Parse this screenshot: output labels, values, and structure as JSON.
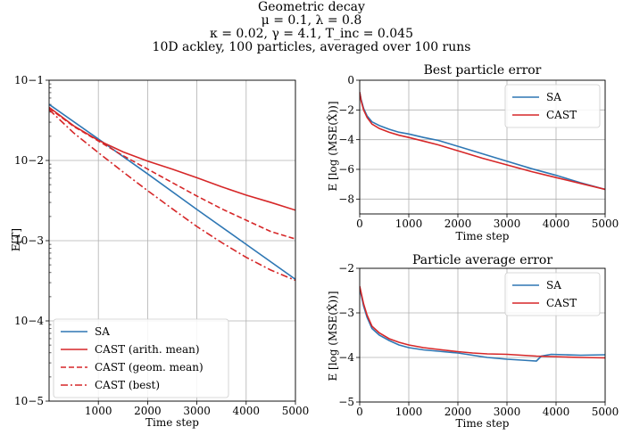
{
  "figure": {
    "title_lines": [
      "Geometric decay",
      "μ = 0.1, λ = 0.8",
      "κ = 0.02, γ = 4.1, T_inc = 0.045",
      "10D ackley, 100 particles, averaged over 100 runs"
    ]
  },
  "colors": {
    "sa": "#2e77b4",
    "cast": "#d62728",
    "grid": "#b0b0b0"
  },
  "chart_data": [
    {
      "id": "temperature",
      "type": "line",
      "title": "",
      "xlabel": "Time step",
      "ylabel": "E[T]",
      "yscale": "log",
      "xlim": [
        0,
        5000
      ],
      "ylim": [
        1e-05,
        0.1
      ],
      "xticks": [
        1000,
        2000,
        3000,
        4000,
        5000
      ],
      "yticks": [
        1e-05,
        0.0001,
        0.001,
        0.01,
        0.1
      ],
      "ytick_labels": [
        "10−5",
        "10−4",
        "10−3",
        "10−2",
        "10−1"
      ],
      "grid": true,
      "legend_position": "lower-left",
      "series": [
        {
          "name": "SA",
          "color_key": "sa",
          "style": "solid",
          "x": [
            0,
            1000,
            2000,
            3000,
            4000,
            5000
          ],
          "y": [
            0.05,
            0.0185,
            0.0068,
            0.00245,
            0.0009,
            0.00033
          ]
        },
        {
          "name": "CAST (arith. mean)",
          "color_key": "cast",
          "style": "solid",
          "x": [
            0,
            500,
            1000,
            1500,
            2000,
            2500,
            3000,
            3500,
            4000,
            4500,
            5000
          ],
          "y": [
            0.046,
            0.027,
            0.0178,
            0.0128,
            0.0098,
            0.0078,
            0.0061,
            0.0047,
            0.0037,
            0.003,
            0.0024
          ]
        },
        {
          "name": "CAST (geom. mean)",
          "color_key": "cast",
          "style": "dashed",
          "x": [
            0,
            500,
            1000,
            1500,
            2000,
            2500,
            3000,
            3500,
            4000,
            4500,
            5000
          ],
          "y": [
            0.045,
            0.0265,
            0.0175,
            0.0115,
            0.0078,
            0.0053,
            0.0036,
            0.0025,
            0.0018,
            0.0013,
            0.00105
          ]
        },
        {
          "name": "CAST (best)",
          "color_key": "cast",
          "style": "dashdot",
          "x": [
            0,
            500,
            1000,
            1500,
            2000,
            2500,
            3000,
            3500,
            4000,
            4500,
            5000
          ],
          "y": [
            0.043,
            0.022,
            0.0125,
            0.0072,
            0.0042,
            0.0025,
            0.0015,
            0.00095,
            0.00062,
            0.00043,
            0.00032
          ]
        }
      ]
    },
    {
      "id": "best-particle-error",
      "type": "line",
      "title": "Best particle error",
      "xlabel": "Time step",
      "ylabel": "E [log (MSE(X̂))]",
      "xlim": [
        0,
        5000
      ],
      "ylim": [
        -9,
        0
      ],
      "xticks": [
        0,
        1000,
        2000,
        3000,
        4000,
        5000
      ],
      "yticks": [
        0,
        -2,
        -4,
        -6,
        -8
      ],
      "ytick_labels": [
        "0",
        "−2",
        "−4",
        "−6",
        "−8"
      ],
      "grid": true,
      "legend_position": "upper-right",
      "series": [
        {
          "name": "SA",
          "color_key": "sa",
          "style": "solid",
          "x": [
            0,
            30,
            80,
            150,
            250,
            400,
            600,
            800,
            1000,
            1300,
            1600,
            2000,
            2500,
            3000,
            3500,
            4000,
            4500,
            5000
          ],
          "y": [
            -0.8,
            -1.3,
            -1.9,
            -2.4,
            -2.8,
            -3.05,
            -3.3,
            -3.5,
            -3.62,
            -3.85,
            -4.05,
            -4.45,
            -4.95,
            -5.45,
            -5.95,
            -6.4,
            -6.9,
            -7.35
          ]
        },
        {
          "name": "CAST",
          "color_key": "cast",
          "style": "solid",
          "x": [
            0,
            30,
            80,
            150,
            250,
            400,
            600,
            800,
            1000,
            1300,
            1600,
            2000,
            2500,
            3000,
            3500,
            4000,
            4500,
            5000
          ],
          "y": [
            -0.8,
            -1.4,
            -2.0,
            -2.5,
            -2.95,
            -3.25,
            -3.5,
            -3.7,
            -3.85,
            -4.1,
            -4.35,
            -4.75,
            -5.25,
            -5.7,
            -6.15,
            -6.55,
            -6.95,
            -7.35
          ]
        }
      ]
    },
    {
      "id": "particle-average-error",
      "type": "line",
      "title": "Particle average error",
      "xlabel": "Time step",
      "ylabel": "E [log (MSE(X̂))]",
      "xlim": [
        0,
        5000
      ],
      "ylim": [
        -5,
        -2
      ],
      "xticks": [
        0,
        1000,
        2000,
        3000,
        4000,
        5000
      ],
      "yticks": [
        -2,
        -3,
        -4,
        -5
      ],
      "ytick_labels": [
        "−2",
        "−3",
        "−4",
        "−5"
      ],
      "grid": true,
      "legend_position": "upper-right",
      "series": [
        {
          "name": "SA",
          "color_key": "sa",
          "style": "solid",
          "x": [
            0,
            30,
            80,
            150,
            250,
            400,
            600,
            800,
            1000,
            1300,
            1600,
            2000,
            2300,
            2600,
            3000,
            3300,
            3600,
            3700,
            3900,
            4200,
            4500,
            5000
          ],
          "y": [
            -2.45,
            -2.6,
            -2.85,
            -3.1,
            -3.35,
            -3.5,
            -3.62,
            -3.72,
            -3.78,
            -3.83,
            -3.86,
            -3.9,
            -3.95,
            -4.0,
            -4.04,
            -4.06,
            -4.08,
            -3.97,
            -3.93,
            -3.94,
            -3.95,
            -3.94
          ]
        },
        {
          "name": "CAST",
          "color_key": "cast",
          "style": "solid",
          "x": [
            0,
            30,
            80,
            150,
            250,
            400,
            600,
            800,
            1000,
            1300,
            1600,
            2000,
            2300,
            2600,
            3000,
            3300,
            3600,
            3900,
            4200,
            4500,
            5000
          ],
          "y": [
            -2.4,
            -2.55,
            -2.8,
            -3.05,
            -3.3,
            -3.45,
            -3.58,
            -3.66,
            -3.72,
            -3.78,
            -3.82,
            -3.87,
            -3.9,
            -3.92,
            -3.93,
            -3.95,
            -3.97,
            -3.98,
            -3.99,
            -4.0,
            -4.01
          ]
        }
      ]
    }
  ]
}
